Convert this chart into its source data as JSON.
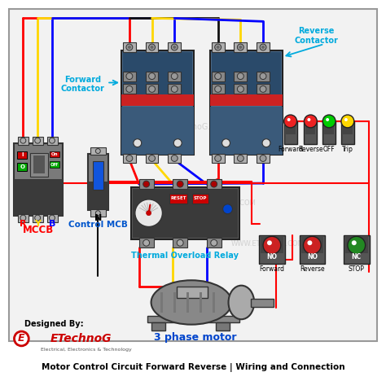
{
  "title": "Motor Control Circuit Forward Reverse | Wiring and Connection",
  "background_color": "#ffffff",
  "watermark": "WWW.ETechnoG.COM",
  "designed_by": "Designed By:",
  "brand": "ETechnoG",
  "brand_sub": "Electrical, Electronics & Technology",
  "subtitle_3phase": "3 phase motor",
  "labels": {
    "mccb": "MCCB",
    "control_mcb": "Control MCB",
    "forward_contactor": "Forward\nContactor",
    "reverse_contactor": "Reverse\nContactor",
    "thermal_relay": "Thermal Overload Relay",
    "neutral": "N",
    "R": "R",
    "Y": "Y",
    "B": "B",
    "forward_indicator": "Forward",
    "reverse_indicator": "Reverse",
    "off_indicator": "OFF",
    "trip_indicator": "Trip",
    "forward_button": "Forward",
    "reverse_button": "Reverse",
    "stop_button": "STOP",
    "no_label": "NO",
    "nc_label": "NC"
  },
  "colors": {
    "red": "#FF0000",
    "yellow": "#FFD700",
    "blue": "#0000FF",
    "black": "#111111",
    "dark_gray": "#4a4a4a",
    "mid_gray": "#6a6a6a",
    "light_gray": "#b0b0b0",
    "silver": "#cccccc",
    "white": "#FFFFFF",
    "cyan_label": "#00AADD",
    "green_btn": "#228822",
    "red_btn": "#cc2222",
    "green_ind": "#00CC00",
    "red_ind": "#EE2222",
    "yellow_ind": "#FFD700",
    "contactor_blue": "#4a6a8a",
    "contactor_dark": "#2a4a6a",
    "relay_dark": "#3a3a3a",
    "mccb_gray": "#7a7a7a",
    "mccb_dark": "#3a3a3a"
  }
}
